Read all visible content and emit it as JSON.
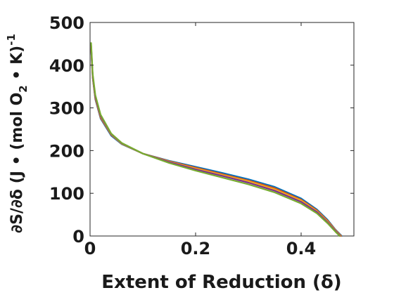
{
  "chart_data": {
    "type": "line",
    "title": "",
    "xlabel": "Extent of Reduction (δ)",
    "ylabel": "∂S/∂δ (J • (mol O₂ • K)⁻¹",
    "ylabel_parts": {
      "main": "∂S/∂δ (J • (mol O",
      "sub": "2",
      "mid": " • K)",
      "sup": "-1"
    },
    "xlim": [
      0,
      0.5
    ],
    "ylim": [
      0,
      500
    ],
    "xticks": [
      0,
      0.2,
      0.4
    ],
    "xtick_labels": [
      "0",
      "0.2",
      "0.4"
    ],
    "yticks": [
      0,
      100,
      200,
      300,
      400,
      500
    ],
    "ytick_labels": [
      "0",
      "100",
      "200",
      "300",
      "400",
      "500"
    ],
    "grid": false,
    "legend": "none",
    "series": [
      {
        "color": "#0072bd",
        "x": [
          0.002,
          0.005,
          0.01,
          0.02,
          0.04,
          0.06,
          0.1,
          0.15,
          0.2,
          0.25,
          0.3,
          0.35,
          0.4,
          0.43,
          0.45,
          0.465,
          0.477
        ],
        "y": [
          440,
          370,
          320,
          275,
          235,
          215,
          193,
          176,
          162,
          148,
          133,
          115,
          88,
          62,
          38,
          15,
          0
        ]
      },
      {
        "color": "#d95319",
        "x": [
          0.002,
          0.005,
          0.01,
          0.02,
          0.04,
          0.06,
          0.1,
          0.15,
          0.2,
          0.25,
          0.3,
          0.35,
          0.4,
          0.43,
          0.45,
          0.465,
          0.476
        ],
        "y": [
          442,
          372,
          322,
          277,
          237,
          216,
          193,
          175,
          160,
          145,
          130,
          112,
          85,
          60,
          36,
          14,
          0
        ]
      },
      {
        "color": "#edb120",
        "x": [
          0.002,
          0.005,
          0.01,
          0.02,
          0.04,
          0.06,
          0.1,
          0.15,
          0.2,
          0.25,
          0.3,
          0.35,
          0.4,
          0.43,
          0.45,
          0.465,
          0.475
        ],
        "y": [
          444,
          374,
          324,
          279,
          238,
          216,
          193,
          174,
          158,
          143,
          128,
          109,
          83,
          58,
          34,
          13,
          0
        ]
      },
      {
        "color": "#7e2f8e",
        "x": [
          0.002,
          0.005,
          0.01,
          0.02,
          0.04,
          0.06,
          0.1,
          0.15,
          0.2,
          0.25,
          0.3,
          0.35,
          0.4,
          0.43,
          0.45,
          0.465,
          0.474
        ],
        "y": [
          446,
          376,
          326,
          281,
          239,
          217,
          193,
          173,
          156,
          141,
          125,
          106,
          80,
          56,
          32,
          12,
          0
        ]
      },
      {
        "color": "#77ac30",
        "x": [
          0.002,
          0.005,
          0.01,
          0.02,
          0.04,
          0.06,
          0.1,
          0.15,
          0.2,
          0.25,
          0.3,
          0.35,
          0.4,
          0.43,
          0.45,
          0.465,
          0.473
        ],
        "y": [
          452,
          380,
          330,
          284,
          240,
          218,
          193,
          171,
          153,
          137,
          121,
          102,
          76,
          53,
          30,
          10,
          0
        ]
      }
    ]
  }
}
